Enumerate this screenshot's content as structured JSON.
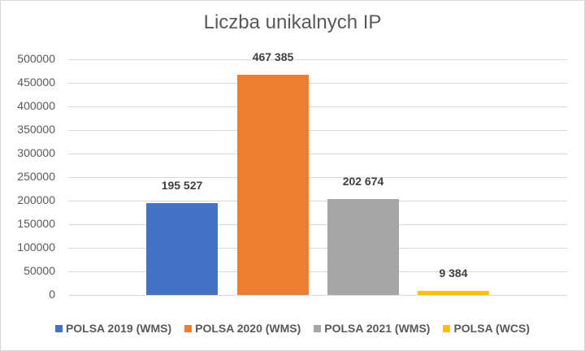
{
  "chart_data": {
    "type": "bar",
    "title": "Liczba unikalnych IP",
    "xlabel": "",
    "ylabel": "",
    "ylim": [
      0,
      500000
    ],
    "yticks": [
      "500000",
      "450000",
      "400000",
      "350000",
      "300000",
      "250000",
      "200000",
      "150000",
      "100000",
      "50000",
      "0"
    ],
    "grid": true,
    "legend_position": "bottom",
    "categories": [
      ""
    ],
    "series": [
      {
        "name": "POLSA 2019 (WMS)",
        "values": [
          195527
        ],
        "label": "195 527",
        "color": "#4472c4"
      },
      {
        "name": "POLSA 2020 (WMS)",
        "values": [
          467385
        ],
        "label": "467 385",
        "color": "#ed7d31"
      },
      {
        "name": "POLSA 2021 (WMS)",
        "values": [
          202674
        ],
        "label": "202 674",
        "color": "#a5a5a5"
      },
      {
        "name": "POLSA (WCS)",
        "values": [
          9384
        ],
        "label": "9 384",
        "color": "#ffc000"
      }
    ]
  }
}
